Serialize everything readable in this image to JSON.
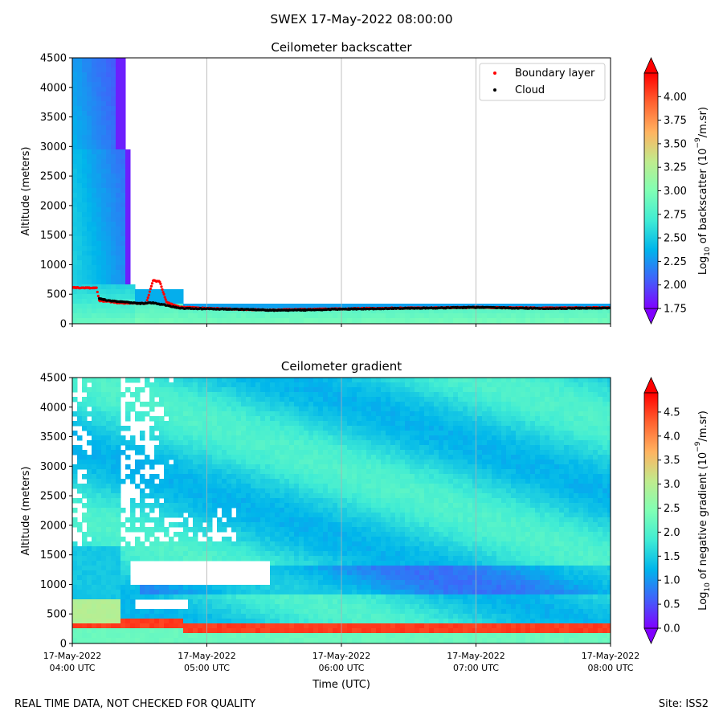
{
  "title": "SWEX 17-May-2022 08:00:00",
  "footer": {
    "left": "REAL TIME DATA, NOT CHECKED FOR QUALITY",
    "right": "Site: ISS2"
  },
  "colors": {
    "colormap": [
      "#8000ff",
      "#4062fa",
      "#00b5eb",
      "#40ecd4",
      "#80ffb4",
      "#c0eb8d",
      "#ffb360",
      "#ff6230",
      "#ff0000"
    ],
    "boundary_layer": "#ff0000",
    "cloud": "#000000",
    "grid": "#b0b0b0"
  },
  "chart_data": [
    {
      "type": "heatmap",
      "title": "Ceilometer backscatter",
      "ylabel": "Altitude (meters)",
      "ylim": [
        0,
        4500
      ],
      "yticks": [
        0,
        500,
        1000,
        1500,
        2000,
        2500,
        3000,
        3500,
        4000,
        4500
      ],
      "xlim_hours": [
        4,
        8
      ],
      "grid": "vertical",
      "colorbar": {
        "label_prefix": "Log",
        "label_sub": "10",
        "label_rest": " of backscatter (10",
        "label_sup": "−9",
        "label_end": "/m.sr)",
        "range": [
          1.75,
          4.25
        ],
        "ticks": [
          "1.75",
          "2.00",
          "2.25",
          "2.50",
          "2.75",
          "3.00",
          "3.25",
          "3.50",
          "3.75",
          "4.00"
        ],
        "tick_values": [
          1.75,
          2.0,
          2.25,
          2.5,
          2.75,
          3.0,
          3.25,
          3.5,
          3.75,
          4.0
        ]
      },
      "legend": {
        "placement": "upper right",
        "entries": [
          {
            "name": "Boundary layer",
            "color": "#ff0000"
          },
          {
            "name": "Cloud",
            "color": "#000000"
          }
        ]
      },
      "boundary_layer": [
        [
          4.0,
          620
        ],
        [
          4.1,
          615
        ],
        [
          4.18,
          610
        ],
        [
          4.2,
          400
        ],
        [
          4.28,
          380
        ],
        [
          4.35,
          360
        ],
        [
          4.45,
          355
        ],
        [
          4.55,
          350
        ],
        [
          4.6,
          740
        ],
        [
          4.65,
          720
        ],
        [
          4.7,
          370
        ],
        [
          4.8,
          290
        ],
        [
          5.0,
          270
        ],
        [
          5.25,
          250
        ],
        [
          5.5,
          240
        ],
        [
          5.75,
          250
        ],
        [
          6.0,
          260
        ],
        [
          6.25,
          270
        ],
        [
          6.5,
          275
        ],
        [
          6.75,
          280
        ],
        [
          7.0,
          285
        ],
        [
          7.25,
          280
        ],
        [
          7.5,
          275
        ],
        [
          7.75,
          280
        ],
        [
          8.0,
          280
        ]
      ],
      "cloud": [
        [
          4.2,
          430
        ],
        [
          4.3,
          390
        ],
        [
          4.4,
          370
        ],
        [
          4.5,
          350
        ],
        [
          4.6,
          360
        ],
        [
          4.7,
          320
        ],
        [
          4.8,
          270
        ],
        [
          5.0,
          260
        ],
        [
          5.25,
          250
        ],
        [
          5.5,
          235
        ],
        [
          5.75,
          240
        ],
        [
          6.0,
          255
        ],
        [
          6.25,
          260
        ],
        [
          6.5,
          270
        ],
        [
          6.75,
          275
        ],
        [
          7.0,
          285
        ],
        [
          7.25,
          275
        ],
        [
          7.5,
          265
        ],
        [
          7.75,
          270
        ],
        [
          8.0,
          275
        ]
      ]
    },
    {
      "type": "heatmap",
      "title": "Ceilometer gradient",
      "ylabel": "Altitude (meters)",
      "xlabel": "Time (UTC)",
      "ylim": [
        0,
        4500
      ],
      "yticks": [
        0,
        500,
        1000,
        1500,
        2000,
        2500,
        3000,
        3500,
        4000,
        4500
      ],
      "xlim_hours": [
        4,
        8
      ],
      "xticks": [
        {
          "hour": 4,
          "date": "17-May-2022",
          "time": "04:00 UTC"
        },
        {
          "hour": 5,
          "date": "17-May-2022",
          "time": "05:00 UTC"
        },
        {
          "hour": 6,
          "date": "17-May-2022",
          "time": "06:00 UTC"
        },
        {
          "hour": 7,
          "date": "17-May-2022",
          "time": "07:00 UTC"
        },
        {
          "hour": 8,
          "date": "17-May-2022",
          "time": "08:00 UTC"
        }
      ],
      "grid": "vertical",
      "colorbar": {
        "label_prefix": "Log",
        "label_sub": "10",
        "label_rest": " of negative gradient (10",
        "label_sup": "−9",
        "label_end": "/m.sr)",
        "range": [
          0.0,
          4.9
        ],
        "ticks": [
          "0.0",
          "0.5",
          "1.0",
          "1.5",
          "2.0",
          "2.5",
          "3.0",
          "3.5",
          "4.0",
          "4.5"
        ],
        "tick_values": [
          0.0,
          0.5,
          1.0,
          1.5,
          2.0,
          2.5,
          3.0,
          3.5,
          4.0,
          4.5
        ]
      }
    }
  ]
}
